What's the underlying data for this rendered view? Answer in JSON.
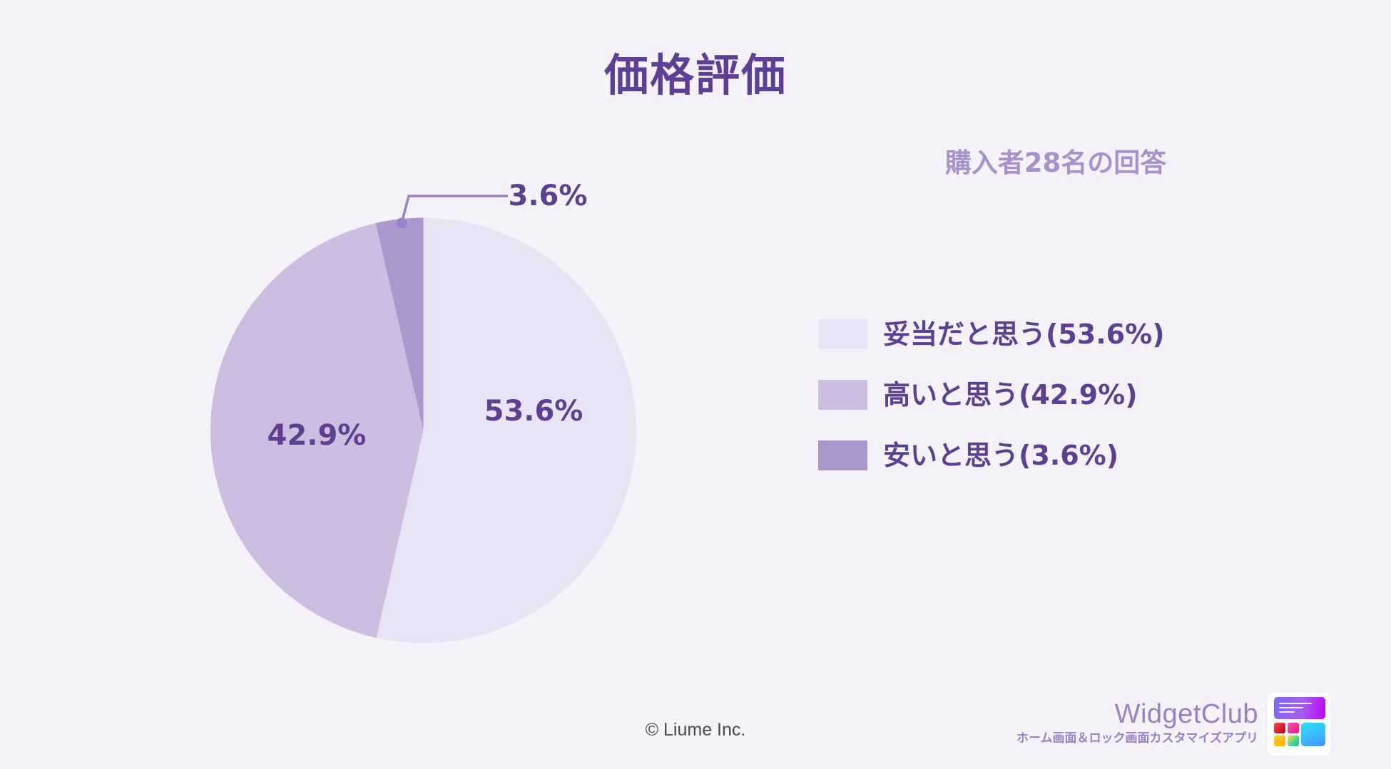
{
  "header": {
    "title": "価格評価",
    "subtitle": "購入者28名の回答"
  },
  "chart_data": {
    "type": "pie",
    "title": "価格評価",
    "subtitle": "購入者28名の回答",
    "categories": [
      "妥当だと思う",
      "高いと思う",
      "安いと思う"
    ],
    "values": [
      53.6,
      42.9,
      3.6
    ],
    "unit": "%",
    "respondents": 28,
    "start_angle": "12 o'clock",
    "direction": "clockwise",
    "slice_labels": [
      "53.6%",
      "42.9%",
      "3.6%"
    ],
    "colors": [
      "#e9e4f3",
      "#cdbde1",
      "#ab97cd"
    ],
    "legend_position": "right",
    "legend_entries": [
      "妥当だと思う(53.6%)",
      "高いと思う(42.9%)",
      "安いと思う(3.6%)"
    ]
  },
  "legend": {
    "items": [
      {
        "label": "妥当だと思う(53.6%)",
        "color": "#e9e4f3"
      },
      {
        "label": "高いと思う(42.9%)",
        "color": "#cdbde1"
      },
      {
        "label": "安いと思う(3.6%)",
        "color": "#ab97cd"
      }
    ]
  },
  "labels": {
    "slice0": "53.6%",
    "slice1": "42.9%",
    "slice2": "3.6%"
  },
  "footer": {
    "copyright": "© Liume Inc.",
    "brand_name": "WidgetClub",
    "brand_tagline": "ホーム画面＆ロック画面カスタマイズアプリ",
    "app_icon": "widgetclub-app-icon"
  },
  "colors": {
    "background": "#f5f3f9",
    "title": "#5e3f96",
    "subtitle": "#a891cc",
    "label_text": "#5d3f94",
    "leader_line": "#9b7fc8",
    "brand": "#9a80c6"
  }
}
